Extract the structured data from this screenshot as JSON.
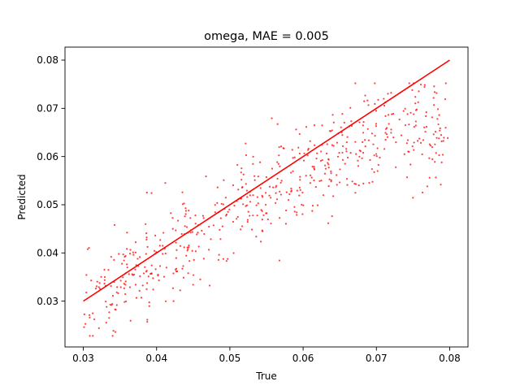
{
  "chart_data": {
    "type": "scatter",
    "title": "omega, MAE = 0.005",
    "xlabel": "True",
    "ylabel": "Predicted",
    "xlim": [
      0.0275,
      0.0825
    ],
    "ylim": [
      0.0205,
      0.0827
    ],
    "x_ticks": [
      "0.03",
      "0.04",
      "0.05",
      "0.06",
      "0.07",
      "0.08"
    ],
    "y_ticks": [
      "0.03",
      "0.04",
      "0.05",
      "0.06",
      "0.07",
      "0.08"
    ],
    "grid": false,
    "point_color": "#ff0000",
    "line_color": "#ff0000",
    "reference_line": {
      "x": [
        0.03,
        0.08
      ],
      "y": [
        0.03,
        0.08
      ]
    },
    "approx_point_count": 600,
    "noise_sd": 0.0052
  }
}
